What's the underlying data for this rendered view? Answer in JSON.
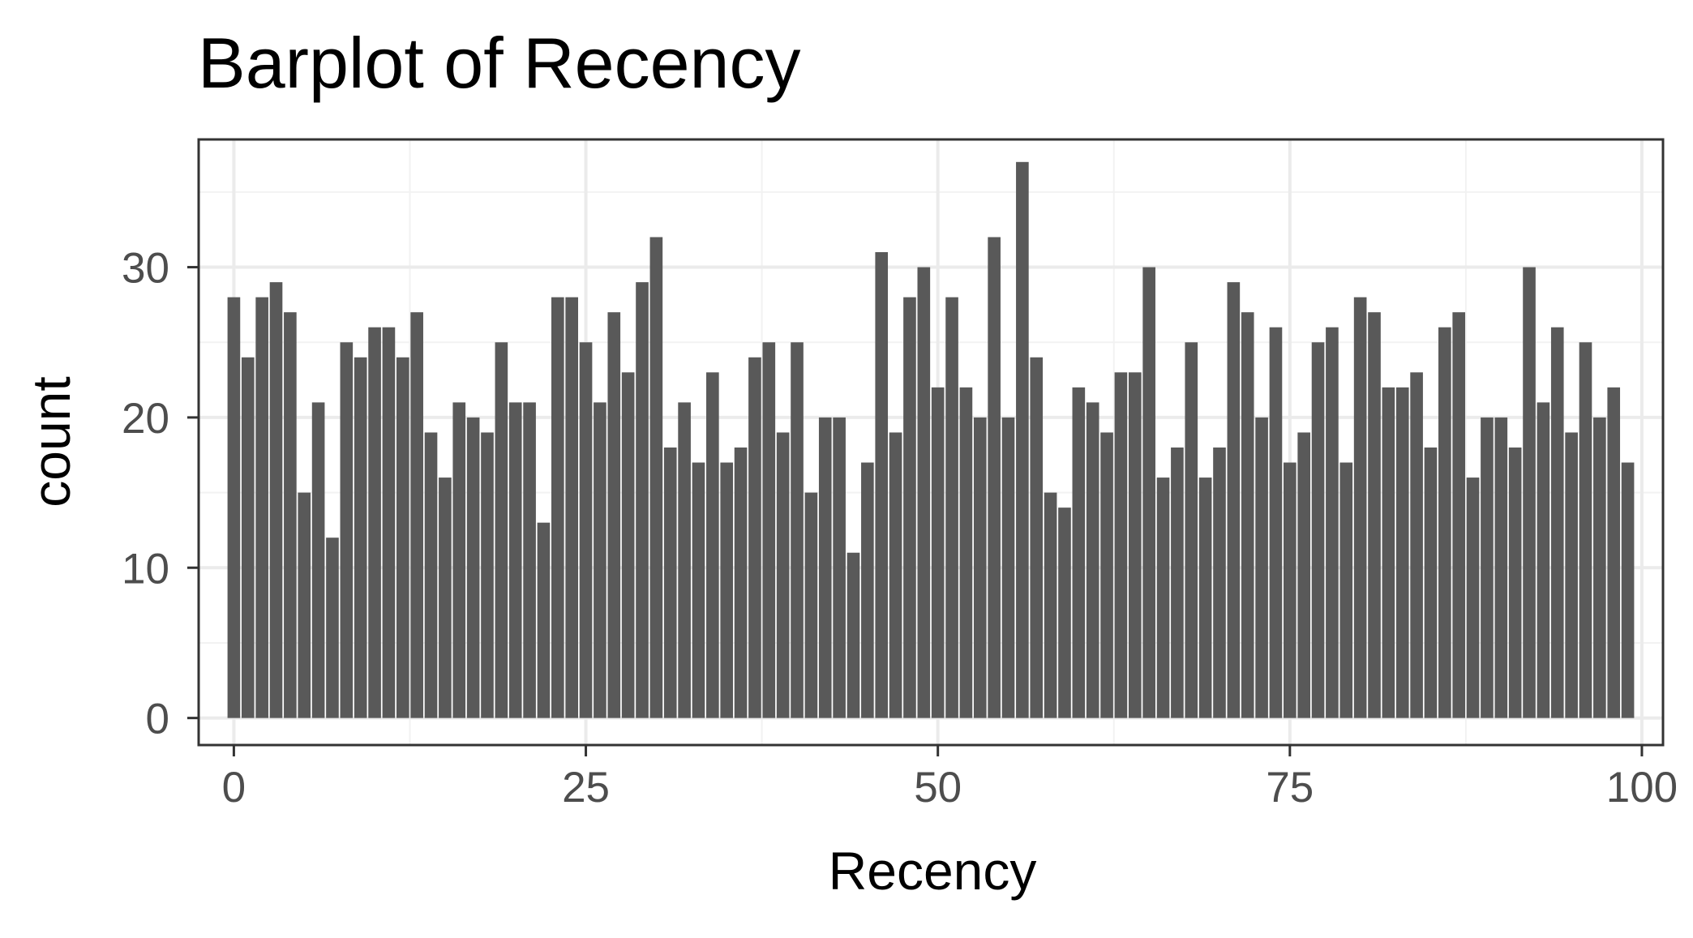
{
  "chart_data": {
    "type": "bar",
    "title": "Barplot of Recency",
    "xlabel": "Recency",
    "ylabel": "count",
    "xlim": [
      -2.5,
      101.5
    ],
    "ylim": [
      -1.8,
      38.5
    ],
    "x_ticks": [
      0,
      25,
      50,
      75,
      100
    ],
    "x_tick_labels": [
      "0",
      "25",
      "50",
      "75",
      "100"
    ],
    "y_ticks": [
      0,
      10,
      20,
      30
    ],
    "y_tick_labels": [
      "0",
      "10",
      "20",
      "30"
    ],
    "grid": true,
    "legend": "none",
    "bar_color": "#595959",
    "panel_border_color": "#333333",
    "grid_major_color": "#ebebeb",
    "grid_minor_color": "#f2f2f2",
    "x": [
      0,
      1,
      2,
      3,
      4,
      5,
      6,
      7,
      8,
      9,
      10,
      11,
      12,
      13,
      14,
      15,
      16,
      17,
      18,
      19,
      20,
      21,
      22,
      23,
      24,
      25,
      26,
      27,
      28,
      29,
      30,
      31,
      32,
      33,
      34,
      35,
      36,
      37,
      38,
      39,
      40,
      41,
      42,
      43,
      44,
      45,
      46,
      47,
      48,
      49,
      50,
      51,
      52,
      53,
      54,
      55,
      56,
      57,
      58,
      59,
      60,
      61,
      62,
      63,
      64,
      65,
      66,
      67,
      68,
      69,
      70,
      71,
      72,
      73,
      74,
      75,
      76,
      77,
      78,
      79,
      80,
      81,
      82,
      83,
      84,
      85,
      86,
      87,
      88,
      89,
      90,
      91,
      92,
      93,
      94,
      95,
      96,
      97,
      98,
      99
    ],
    "values": [
      28,
      24,
      28,
      29,
      27,
      15,
      21,
      12,
      25,
      24,
      26,
      26,
      24,
      27,
      19,
      16,
      21,
      20,
      19,
      25,
      21,
      21,
      13,
      28,
      28,
      25,
      21,
      27,
      23,
      29,
      32,
      18,
      21,
      17,
      23,
      17,
      18,
      24,
      25,
      19,
      25,
      15,
      20,
      20,
      11,
      17,
      31,
      19,
      28,
      30,
      22,
      28,
      22,
      20,
      32,
      20,
      37,
      24,
      15,
      14,
      22,
      21,
      19,
      23,
      23,
      30,
      16,
      18,
      25,
      16,
      18,
      29,
      27,
      20,
      26,
      17,
      19,
      25,
      26,
      17,
      28,
      27,
      22,
      22,
      23,
      18,
      26,
      27,
      16,
      20,
      20,
      18,
      30,
      21,
      26,
      19,
      25,
      20,
      22,
      17
    ]
  }
}
